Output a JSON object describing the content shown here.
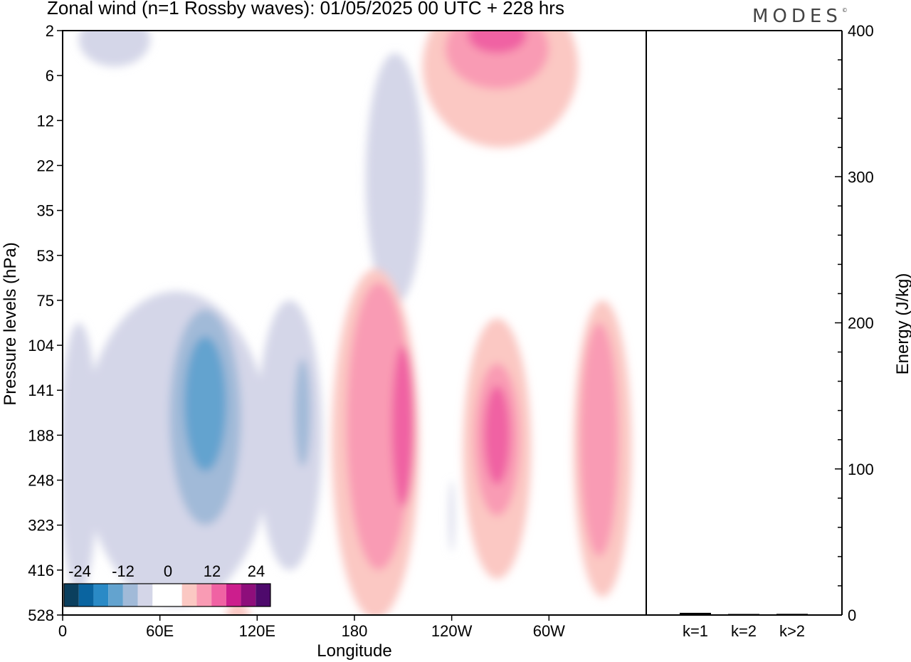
{
  "title": "Zonal wind (n=1 Rossby waves):  01/05/2025  00 UTC  + 228 hrs",
  "brand": "MODES",
  "brand_mark": "©",
  "colors": {
    "neg": [
      "#0b3f5e",
      "#0a64a0",
      "#2a8ac6",
      "#63a3cf",
      "#a1bad8",
      "#d4d6e8"
    ],
    "zero": "#ffffff",
    "pos": [
      "#fbc8c3",
      "#f99bb4",
      "#f062a3",
      "#cc1e8d",
      "#8e0e7b",
      "#4e0a6c"
    ]
  },
  "chart_data": [
    {
      "type": "heatmap",
      "title": "Zonal wind (n=1 Rossby waves):  01/05/2025  00 UTC  + 228 hrs",
      "xlabel": "Longitude",
      "ylabel": "Pressure levels (hPa)",
      "x_ticks": [
        "0",
        "60E",
        "120E",
        "180",
        "120W",
        "60W"
      ],
      "x_tick_degrees": [
        0,
        60,
        120,
        180,
        240,
        300
      ],
      "xlim": [
        0,
        360
      ],
      "y_ticks": [
        "2",
        "6",
        "12",
        "22",
        "35",
        "53",
        "75",
        "104",
        "141",
        "188",
        "248",
        "323",
        "416",
        "528"
      ],
      "colorbar_labels": [
        "-24",
        "-12",
        "0",
        "12",
        "24"
      ],
      "colorbar_levels": [
        -30,
        -25,
        -20,
        -15,
        -10,
        -5,
        0,
        5,
        10,
        15,
        20,
        25,
        30
      ],
      "regions": [
        {
          "sign": "neg",
          "level": 1,
          "cx": 70,
          "cy": 9.3,
          "rx": 58,
          "ry": 3.5
        },
        {
          "sign": "neg",
          "level": 1,
          "cx": 205,
          "cy": 3.3,
          "rx": 18,
          "ry": 2.8
        },
        {
          "sign": "neg",
          "level": 1,
          "cx": 10,
          "cy": 9.5,
          "rx": 12,
          "ry": 3.0
        },
        {
          "sign": "neg",
          "level": 1,
          "cx": 140,
          "cy": 9.0,
          "rx": 20,
          "ry": 3.0
        },
        {
          "sign": "neg",
          "level": 1,
          "cx": 32,
          "cy": 0.2,
          "rx": 22,
          "ry": 0.6
        },
        {
          "sign": "neg",
          "level": 1,
          "cx": 240,
          "cy": 10.8,
          "rx": 1.5,
          "ry": 0.8
        },
        {
          "sign": "neg",
          "level": 2,
          "cx": 88,
          "cy": 8.6,
          "rx": 22,
          "ry": 2.4
        },
        {
          "sign": "neg",
          "level": 2,
          "cx": 148,
          "cy": 8.5,
          "rx": 5,
          "ry": 1.2
        },
        {
          "sign": "neg",
          "level": 3,
          "cx": 88,
          "cy": 8.3,
          "rx": 13,
          "ry": 1.5
        },
        {
          "sign": "pos",
          "level": 1,
          "cx": 193,
          "cy": 9.2,
          "rx": 27,
          "ry": 3.9
        },
        {
          "sign": "pos",
          "level": 1,
          "cx": 268,
          "cy": 9.3,
          "rx": 21,
          "ry": 2.9
        },
        {
          "sign": "pos",
          "level": 1,
          "cx": 333,
          "cy": 9.3,
          "rx": 18,
          "ry": 3.3
        },
        {
          "sign": "pos",
          "level": 1,
          "cx": 270,
          "cy": 0.8,
          "rx": 48,
          "ry": 1.8
        },
        {
          "sign": "pos",
          "level": 1,
          "cx": 108,
          "cy": 13.2,
          "rx": 8,
          "ry": 0.5
        },
        {
          "sign": "pos",
          "level": 2,
          "cx": 195,
          "cy": 8.8,
          "rx": 20,
          "ry": 3.2
        },
        {
          "sign": "pos",
          "level": 2,
          "cx": 268,
          "cy": 9.1,
          "rx": 14,
          "ry": 1.7
        },
        {
          "sign": "pos",
          "level": 2,
          "cx": 331,
          "cy": 9.1,
          "rx": 12,
          "ry": 2.6
        },
        {
          "sign": "pos",
          "level": 2,
          "cx": 268,
          "cy": 0.4,
          "rx": 32,
          "ry": 0.9
        },
        {
          "sign": "pos",
          "level": 3,
          "cx": 210,
          "cy": 8.8,
          "rx": 7,
          "ry": 1.8
        },
        {
          "sign": "pos",
          "level": 3,
          "cx": 268,
          "cy": 9.0,
          "rx": 8,
          "ry": 1.1
        },
        {
          "sign": "pos",
          "level": 3,
          "cx": 268,
          "cy": 0.1,
          "rx": 18,
          "ry": 0.4
        }
      ]
    },
    {
      "type": "bar",
      "ylabel": "Energy (J/kg)",
      "categories": [
        "k=1",
        "k=2",
        "k>2"
      ],
      "values": [
        1.5,
        0.3,
        0.8
      ],
      "ylim": [
        0,
        400
      ],
      "y_ticks": [
        "0",
        "100",
        "200",
        "300",
        "400"
      ]
    }
  ]
}
